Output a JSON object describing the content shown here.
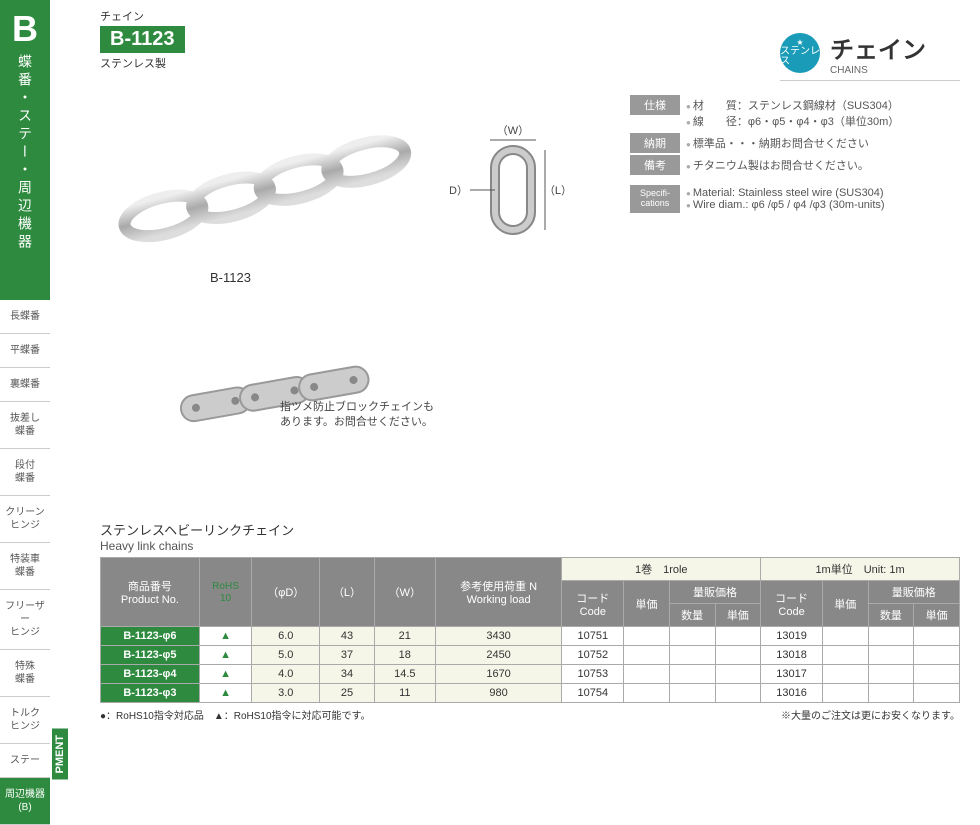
{
  "sidebar": {
    "letter": "B",
    "vertical": "蝶番・ステー・周辺機器",
    "items": [
      "長蝶番",
      "平蝶番",
      "裏蝶番",
      "抜差し\n蝶番",
      "段付\n蝶番",
      "クリーン\nヒンジ",
      "特装車\n蝶番",
      "フリーザー\nヒンジ",
      "特殊\n蝶番",
      "トルク\nヒンジ",
      "ステー",
      "周辺機器\n(B)"
    ],
    "pment": "PMENT"
  },
  "header": {
    "kana": "チェイン",
    "code": "B-1123",
    "sub": "ステンレス製"
  },
  "rightTitle": {
    "badge": "ステンレス",
    "main": "チェイン",
    "sub": "CHAINS"
  },
  "specs": {
    "jp": [
      {
        "label": "仕様",
        "lines": [
          "材　　質：ステンレス鋼線材（SUS304）",
          "線　　径：φ6・φ5・φ4・φ3（単位30m）"
        ]
      },
      {
        "label": "納期",
        "lines": [
          "標準品・・・納期お問合せください"
        ]
      },
      {
        "label": "備考",
        "lines": [
          "チタニウム製はお問合せください。"
        ]
      }
    ],
    "en": {
      "label": "Specifi-\ncations",
      "lines": [
        "Material: Stainless steel wire (SUS304)",
        "Wire diam.: φ6 /φ5 / φ4 /φ3 (30m-units)"
      ]
    }
  },
  "chainLabel": "B-1123",
  "diagram": {
    "w": "（W）",
    "l": "（L）",
    "d": "（φD）"
  },
  "blockNote": "指ツメ防止ブロックチェインも\nあります。お問合せください。",
  "table": {
    "titleJp": "ステンレスヘビーリンクチェイン",
    "titleEn": "Heavy link chains",
    "headerTop": {
      "roll": "1巻　1role",
      "unit": "1m単位　Unit: 1m"
    },
    "headers": {
      "pn": "商品番号\nProduct No.",
      "rohs": "RoHS\n10",
      "phiD": "（φD）",
      "L": "（L）",
      "W": "（W）",
      "load": "参考使用荷重 N\nWorking load",
      "code": "コード\nCode",
      "unitP": "単価",
      "bulk": "量販価格",
      "qty": "数量"
    },
    "rows": [
      {
        "pn": "B-1123-φ6",
        "phiD": "6.0",
        "L": "43",
        "W": "21",
        "load": "3430",
        "code1": "10751",
        "code2": "13019"
      },
      {
        "pn": "B-1123-φ5",
        "phiD": "5.0",
        "L": "37",
        "W": "18",
        "load": "2450",
        "code1": "10752",
        "code2": "13018"
      },
      {
        "pn": "B-1123-φ4",
        "phiD": "4.0",
        "L": "34",
        "W": "14.5",
        "load": "1670",
        "code1": "10753",
        "code2": "13017"
      },
      {
        "pn": "B-1123-φ3",
        "phiD": "3.0",
        "L": "25",
        "W": "11",
        "load": "980",
        "code1": "10754",
        "code2": "13016"
      }
    ],
    "footLeft": "●：RoHS10指令対応品　▲：RoHS10指令に対応可能です。",
    "footRight": "※大量のご注文は更にお安くなります。"
  },
  "colors": {
    "brand": "#2d8a3e",
    "badge": "#1a9bb8",
    "thBg": "#888",
    "lightBg": "#f5f5e8"
  }
}
